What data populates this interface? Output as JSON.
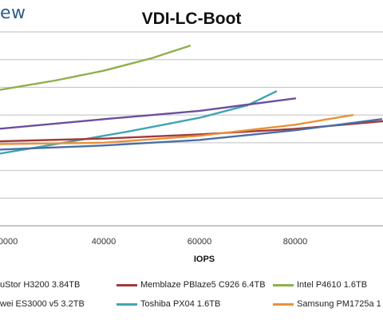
{
  "header": {
    "brand_fragment": "ew"
  },
  "chart_data": {
    "type": "line",
    "title": "VDI-LC-Boot",
    "xlabel": "IOPS",
    "ylabel": "",
    "x_ticks": [
      "0000",
      "40000",
      "60000",
      "80000"
    ],
    "xlim": [
      18000,
      100000
    ],
    "ylim": [
      0,
      7
    ],
    "grid": true,
    "series": [
      {
        "name": "Intel P4610 1.6TB",
        "color": "#8db04a",
        "x": [
          18000,
          30000,
          40000,
          50000,
          58000
        ],
        "y": [
          4.9,
          5.25,
          5.6,
          6.05,
          6.5
        ]
      },
      {
        "name": "Toshiba PX04 1.6TB",
        "color": "#3fa5b4",
        "x": [
          18000,
          30000,
          45000,
          60000,
          70000,
          76000
        ],
        "y": [
          2.6,
          2.95,
          3.4,
          3.9,
          4.35,
          4.85
        ]
      },
      {
        "name": "uStor H3200 3.84TB",
        "color": "#6b4f9e",
        "x": [
          18000,
          40000,
          60000,
          80000
        ],
        "y": [
          3.5,
          3.85,
          4.15,
          4.6
        ]
      },
      {
        "name": "Memblaze PBlaze5 C926 6.4TB",
        "color": "#a23a3a",
        "x": [
          18000,
          40000,
          60000,
          80000,
          100000
        ],
        "y": [
          3.05,
          3.15,
          3.3,
          3.5,
          3.8
        ]
      },
      {
        "name": "Samsung PM1725a 1",
        "color": "#e8913a",
        "x": [
          18000,
          40000,
          60000,
          80000,
          92000
        ],
        "y": [
          2.95,
          3.0,
          3.25,
          3.65,
          4.0
        ]
      },
      {
        "name": "wei ES3000 v5 3.2TB",
        "color": "#4a6ea5",
        "x": [
          18000,
          40000,
          60000,
          80000,
          98000
        ],
        "y": [
          2.75,
          2.9,
          3.1,
          3.45,
          3.85
        ]
      }
    ]
  }
}
